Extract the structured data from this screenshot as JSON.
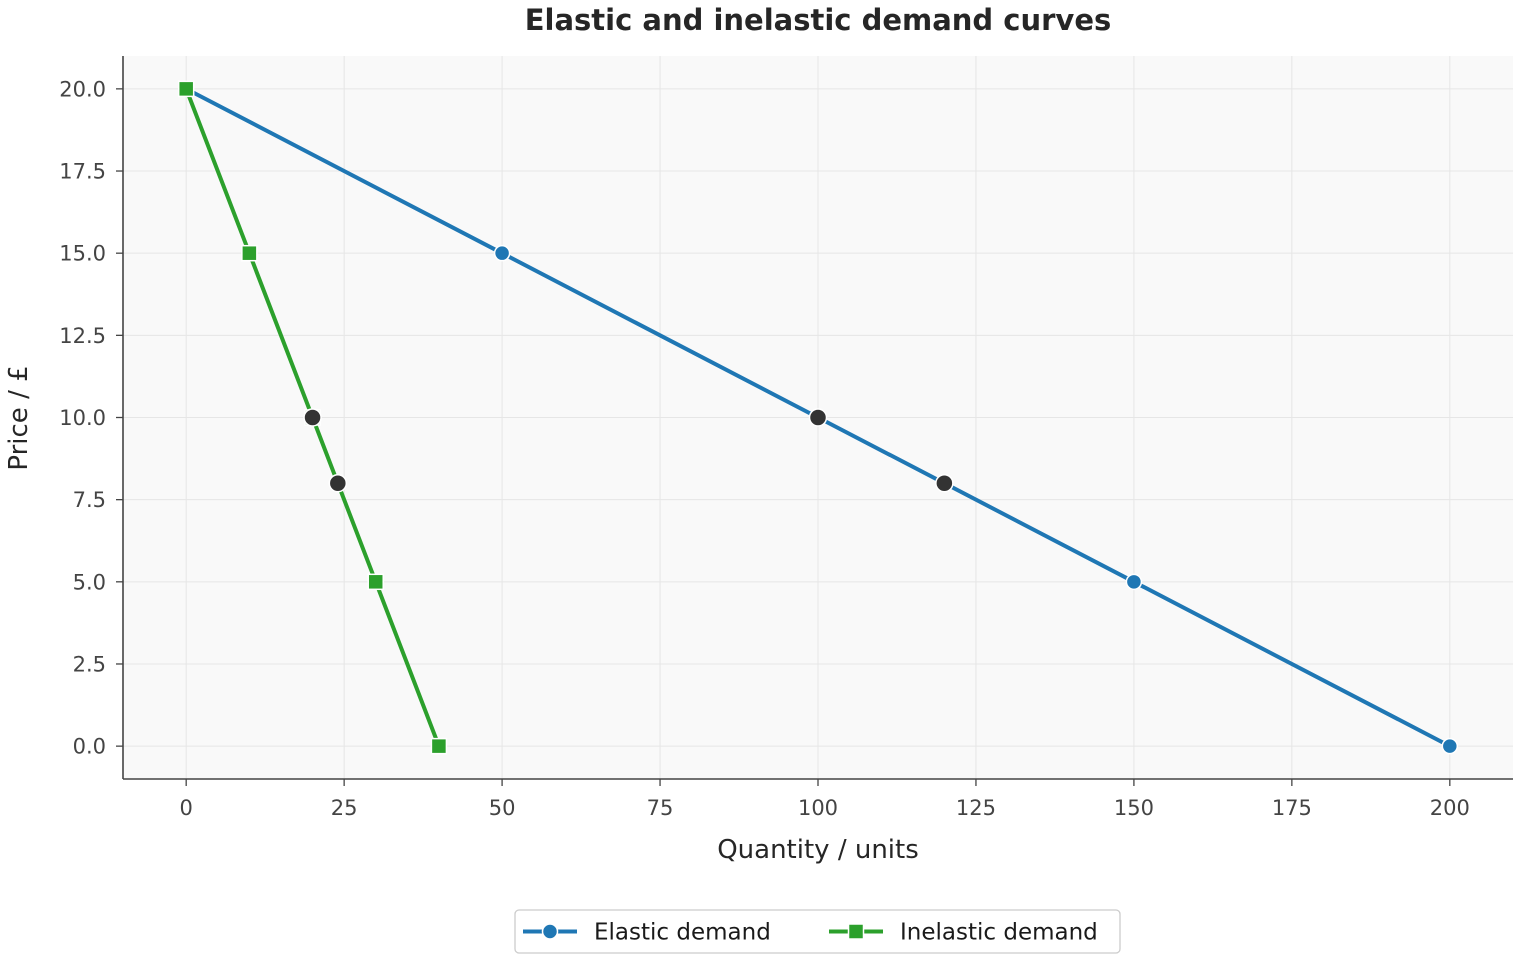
{
  "chart_data": {
    "type": "line",
    "title": "Elastic and inelastic demand curves",
    "xlabel": "Quantity / units",
    "ylabel": "Price / £",
    "xlim": [
      -10,
      210
    ],
    "ylim": [
      -1,
      21
    ],
    "x_ticks": [
      0,
      25,
      50,
      75,
      100,
      125,
      150,
      175,
      200
    ],
    "y_ticks": [
      0.0,
      2.5,
      5.0,
      7.5,
      10.0,
      12.5,
      15.0,
      17.5,
      20.0
    ],
    "x_tick_labels": [
      "0",
      "25",
      "50",
      "75",
      "100",
      "125",
      "150",
      "175",
      "200"
    ],
    "y_tick_labels": [
      "0.0",
      "2.5",
      "5.0",
      "7.5",
      "10.0",
      "12.5",
      "15.0",
      "17.5",
      "20.0"
    ],
    "grid": true,
    "legend_position": "bottom-center",
    "series": [
      {
        "name": "Elastic demand",
        "color": "#1f77b4",
        "marker": "circle",
        "points": [
          {
            "x": 0,
            "y": 20,
            "marker": false
          },
          {
            "x": 50,
            "y": 15,
            "marker": true
          },
          {
            "x": 100,
            "y": 10,
            "marker": false
          },
          {
            "x": 150,
            "y": 5,
            "marker": true
          },
          {
            "x": 200,
            "y": 0,
            "marker": true
          }
        ]
      },
      {
        "name": "Inelastic demand",
        "color": "#2ca02c",
        "marker": "square",
        "points": [
          {
            "x": 0,
            "y": 20,
            "marker": true
          },
          {
            "x": 10,
            "y": 15,
            "marker": true
          },
          {
            "x": 20,
            "y": 10,
            "marker": true
          },
          {
            "x": 30,
            "y": 5,
            "marker": true
          },
          {
            "x": 40,
            "y": 0,
            "marker": true
          }
        ]
      }
    ],
    "highlight_points": {
      "color": "#333333",
      "points": [
        {
          "x": 20,
          "y": 10
        },
        {
          "x": 24,
          "y": 8
        },
        {
          "x": 100,
          "y": 10
        },
        {
          "x": 120,
          "y": 8
        }
      ]
    },
    "colors": {
      "plot_background": "#f9f9f9",
      "grid": "#e6e6e6",
      "axis": "#444444"
    }
  }
}
